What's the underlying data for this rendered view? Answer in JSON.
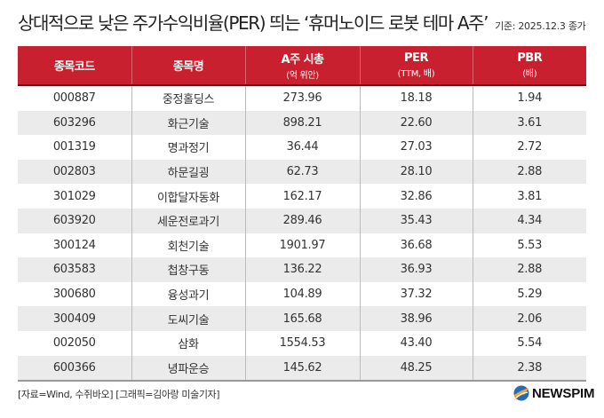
{
  "header": {
    "title": "상대적으로 낮은 주가수익비율(PER) 띄는 ‘휴머노이드 로봇 테마 A주’",
    "basis": "기준:  2025.12.3 종가"
  },
  "table": {
    "columns": [
      {
        "label": "종목코드",
        "sub": ""
      },
      {
        "label": "종목명",
        "sub": ""
      },
      {
        "label": "A주 시총",
        "sub": "(억 위안)"
      },
      {
        "label": "PER",
        "sub": "(TTM, 배)"
      },
      {
        "label": "PBR",
        "sub": "(배)"
      }
    ],
    "rows": [
      {
        "code": "000887",
        "name": "중정홀딩스",
        "mcap": "273.96",
        "per": "18.18",
        "pbr": "1.94"
      },
      {
        "code": "603296",
        "name": "화근기술",
        "mcap": "898.21",
        "per": "22.60",
        "pbr": "3.61"
      },
      {
        "code": "001319",
        "name": "명과정기",
        "mcap": "36.44",
        "per": "27.03",
        "pbr": "2.72"
      },
      {
        "code": "002803",
        "name": "하문길굉",
        "mcap": "62.73",
        "per": "28.10",
        "pbr": "2.88"
      },
      {
        "code": "301029",
        "name": "이합달자동화",
        "mcap": "162.17",
        "per": "32.86",
        "pbr": "3.81"
      },
      {
        "code": "603920",
        "name": "세운전로과기",
        "mcap": "289.46",
        "per": "35.43",
        "pbr": "4.34"
      },
      {
        "code": "300124",
        "name": "회천기술",
        "mcap": "1901.97",
        "per": "36.68",
        "pbr": "5.53"
      },
      {
        "code": "603583",
        "name": "첩창구동",
        "mcap": "136.22",
        "per": "36.93",
        "pbr": "2.88"
      },
      {
        "code": "300680",
        "name": "융성과기",
        "mcap": "104.89",
        "per": "37.32",
        "pbr": "5.29"
      },
      {
        "code": "300409",
        "name": "도씨기술",
        "mcap": "165.68",
        "per": "38.96",
        "pbr": "2.06"
      },
      {
        "code": "002050",
        "name": "삼화",
        "mcap": "1554.53",
        "per": "43.40",
        "pbr": "5.54"
      },
      {
        "code": "600366",
        "name": "녕파운승",
        "mcap": "145.62",
        "per": "48.25",
        "pbr": "2.38"
      }
    ]
  },
  "footer": {
    "source": "[자료=Wind, 수쥐바오] [그래픽=김아랑 미술기자]",
    "logo_text": "NEWSPIM",
    "logo_icon": "newspim-logo-icon"
  },
  "colors": {
    "header_red": "#C8202E",
    "header_border": "#5a0d12",
    "row_alt": "#ebebeb"
  }
}
